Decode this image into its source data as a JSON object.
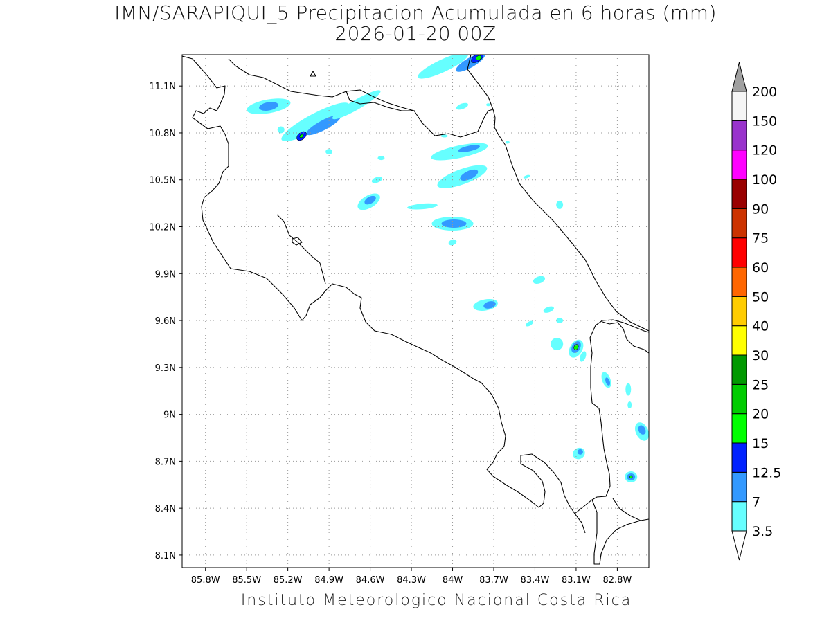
{
  "header": {
    "title_line1": "IMN/SARAPIQUI_5 Precipitacion Acumulada en 6 horas (mm)",
    "title_line2": "2026-01-20 00Z"
  },
  "footer": {
    "credit": "Instituto Meteorologico Nacional Costa Rica"
  },
  "map": {
    "lon_labels": [
      "85.8W",
      "85.5W",
      "85.2W",
      "84.9W",
      "84.6W",
      "84.3W",
      "84W",
      "83.7W",
      "83.4W",
      "83.1W",
      "82.8W"
    ],
    "lon_values": [
      -85.8,
      -85.5,
      -85.2,
      -84.9,
      -84.6,
      -84.3,
      -84.0,
      -83.7,
      -83.4,
      -83.1,
      -82.8
    ],
    "lat_labels": [
      "11.1N",
      "10.8N",
      "10.5N",
      "10.2N",
      "9.9N",
      "9.6N",
      "9.3N",
      "9N",
      "8.7N",
      "8.4N",
      "8.1N"
    ],
    "lat_values": [
      11.1,
      10.8,
      10.5,
      10.2,
      9.9,
      9.6,
      9.3,
      9.0,
      8.7,
      8.4,
      8.1
    ],
    "lon_range": [
      -85.97,
      -82.57
    ],
    "lat_range": [
      8.02,
      11.3
    ],
    "grid": "dotted"
  },
  "legend": {
    "levels": [
      "3.5",
      "7",
      "12.5",
      "15",
      "20",
      "25",
      "30",
      "40",
      "50",
      "60",
      "75",
      "90",
      "100",
      "120",
      "150",
      "200"
    ],
    "colors": [
      "#66ffff",
      "#3399ff",
      "#0022ff",
      "#00ff00",
      "#00cc00",
      "#009900",
      "#ffff00",
      "#ffcc00",
      "#ff6600",
      "#ff0000",
      "#cc3300",
      "#990000",
      "#ff00ff",
      "#9933cc",
      "#f5f5f5"
    ],
    "top_arrow_color": "#a0a0a0",
    "bottom_arrow_color": "#ffffff"
  },
  "precip_cells": [
    {
      "lon": -84.07,
      "lat": 11.23,
      "rx": 40,
      "ry": 9,
      "rot": -25,
      "level": 0
    },
    {
      "lon": -83.87,
      "lat": 11.25,
      "rx": 24,
      "ry": 7,
      "rot": -30,
      "level": 1
    },
    {
      "lon": -83.82,
      "lat": 11.28,
      "rx": 10,
      "ry": 5,
      "rot": -35,
      "level": 2
    },
    {
      "lon": -83.81,
      "lat": 11.28,
      "rx": 4,
      "ry": 3,
      "rot": -35,
      "level": 3
    },
    {
      "lon": -85.34,
      "lat": 10.97,
      "rx": 32,
      "ry": 10,
      "rot": -10,
      "level": 0
    },
    {
      "lon": -85.34,
      "lat": 10.97,
      "rx": 14,
      "ry": 6,
      "rot": -10,
      "level": 1
    },
    {
      "lon": -85.0,
      "lat": 10.87,
      "rx": 55,
      "ry": 12,
      "rot": -28,
      "level": 0
    },
    {
      "lon": -84.94,
      "lat": 10.85,
      "rx": 28,
      "ry": 7,
      "rot": -28,
      "level": 1
    },
    {
      "lon": -85.1,
      "lat": 10.78,
      "rx": 8,
      "ry": 5,
      "rot": -40,
      "level": 2
    },
    {
      "lon": -85.1,
      "lat": 10.78,
      "rx": 3,
      "ry": 2,
      "rot": -40,
      "level": 3
    },
    {
      "lon": -84.7,
      "lat": 10.98,
      "rx": 40,
      "ry": 7,
      "rot": -30,
      "level": 0
    },
    {
      "lon": -83.95,
      "lat": 10.68,
      "rx": 42,
      "ry": 9,
      "rot": -12,
      "level": 0
    },
    {
      "lon": -83.88,
      "lat": 10.7,
      "rx": 16,
      "ry": 4,
      "rot": -12,
      "level": 1
    },
    {
      "lon": -83.93,
      "lat": 10.52,
      "rx": 38,
      "ry": 11,
      "rot": -20,
      "level": 0
    },
    {
      "lon": -83.88,
      "lat": 10.53,
      "rx": 14,
      "ry": 6,
      "rot": -25,
      "level": 1
    },
    {
      "lon": -84.61,
      "lat": 10.36,
      "rx": 18,
      "ry": 9,
      "rot": -30,
      "level": 0
    },
    {
      "lon": -84.6,
      "lat": 10.37,
      "rx": 9,
      "ry": 5,
      "rot": -30,
      "level": 1
    },
    {
      "lon": -84.22,
      "lat": 10.33,
      "rx": 22,
      "ry": 4,
      "rot": -5,
      "level": 0
    },
    {
      "lon": -84.0,
      "lat": 10.22,
      "rx": 30,
      "ry": 10,
      "rot": 0,
      "level": 0
    },
    {
      "lon": -83.99,
      "lat": 10.22,
      "rx": 18,
      "ry": 6,
      "rot": 0,
      "level": 1
    },
    {
      "lon": -83.76,
      "lat": 9.7,
      "rx": 18,
      "ry": 8,
      "rot": -10,
      "level": 0
    },
    {
      "lon": -83.73,
      "lat": 9.7,
      "rx": 9,
      "ry": 5,
      "rot": -15,
      "level": 1
    },
    {
      "lon": -83.37,
      "lat": 9.86,
      "rx": 9,
      "ry": 5,
      "rot": -20,
      "level": 0
    },
    {
      "lon": -83.24,
      "lat": 9.45,
      "rx": 9,
      "ry": 9,
      "rot": -40,
      "level": 0
    },
    {
      "lon": -83.1,
      "lat": 9.42,
      "rx": 9,
      "ry": 14,
      "rot": 30,
      "level": 0
    },
    {
      "lon": -83.1,
      "lat": 9.43,
      "rx": 6,
      "ry": 9,
      "rot": 30,
      "level": 1
    },
    {
      "lon": -83.1,
      "lat": 9.43,
      "rx": 3,
      "ry": 4,
      "rot": 30,
      "level": 3
    },
    {
      "lon": -82.88,
      "lat": 9.22,
      "rx": 6,
      "ry": 12,
      "rot": -20,
      "level": 0
    },
    {
      "lon": -82.87,
      "lat": 9.21,
      "rx": 3,
      "ry": 6,
      "rot": -20,
      "level": 1
    },
    {
      "lon": -82.62,
      "lat": 8.89,
      "rx": 9,
      "ry": 14,
      "rot": -25,
      "level": 0
    },
    {
      "lon": -82.62,
      "lat": 8.9,
      "rx": 5,
      "ry": 7,
      "rot": -25,
      "level": 1
    },
    {
      "lon": -82.7,
      "lat": 8.6,
      "rx": 9,
      "ry": 8,
      "rot": 0,
      "level": 0
    },
    {
      "lon": -82.7,
      "lat": 8.6,
      "rx": 6,
      "ry": 5,
      "rot": 0,
      "level": 1
    },
    {
      "lon": -82.7,
      "lat": 8.6,
      "rx": 2,
      "ry": 2,
      "rot": 0,
      "level": 3
    },
    {
      "lon": -83.08,
      "lat": 8.75,
      "rx": 9,
      "ry": 8,
      "rot": -30,
      "level": 0
    },
    {
      "lon": -83.07,
      "lat": 8.76,
      "rx": 4,
      "ry": 4,
      "rot": -30,
      "level": 1
    },
    {
      "lon": -84.52,
      "lat": 10.64,
      "rx": 5,
      "ry": 3,
      "rot": 0,
      "level": 0
    },
    {
      "lon": -84.9,
      "lat": 10.68,
      "rx": 5,
      "ry": 4,
      "rot": 0,
      "level": 0
    },
    {
      "lon": -85.25,
      "lat": 10.82,
      "rx": 5,
      "ry": 5,
      "rot": 0,
      "level": 0
    },
    {
      "lon": -84.55,
      "lat": 10.5,
      "rx": 8,
      "ry": 4,
      "rot": -20,
      "level": 0
    },
    {
      "lon": -83.93,
      "lat": 10.97,
      "rx": 9,
      "ry": 4,
      "rot": -20,
      "level": 0
    },
    {
      "lon": -83.3,
      "lat": 9.67,
      "rx": 8,
      "ry": 4,
      "rot": -20,
      "level": 0
    },
    {
      "lon": -83.44,
      "lat": 9.58,
      "rx": 6,
      "ry": 3,
      "rot": -30,
      "level": 0
    },
    {
      "lon": -83.22,
      "lat": 9.6,
      "rx": 5,
      "ry": 4,
      "rot": 0,
      "level": 0
    },
    {
      "lon": -83.05,
      "lat": 9.37,
      "rx": 4,
      "ry": 8,
      "rot": 20,
      "level": 0
    },
    {
      "lon": -82.72,
      "lat": 9.16,
      "rx": 4,
      "ry": 9,
      "rot": 0,
      "level": 0
    },
    {
      "lon": -82.71,
      "lat": 9.06,
      "rx": 3,
      "ry": 5,
      "rot": 0,
      "level": 0
    },
    {
      "lon": -83.22,
      "lat": 10.34,
      "rx": 5,
      "ry": 6,
      "rot": 0,
      "level": 0
    },
    {
      "lon": -83.46,
      "lat": 10.52,
      "rx": 5,
      "ry": 2,
      "rot": -20,
      "level": 0
    },
    {
      "lon": -84.0,
      "lat": 10.1,
      "rx": 6,
      "ry": 4,
      "rot": -20,
      "level": 0
    },
    {
      "lon": -84.06,
      "lat": 10.78,
      "rx": 5,
      "ry": 2,
      "rot": 0,
      "level": 0
    },
    {
      "lon": -83.6,
      "lat": 10.74,
      "rx": 3,
      "ry": 2,
      "rot": 0,
      "level": 0
    },
    {
      "lon": -83.74,
      "lat": 10.98,
      "rx": 3,
      "ry": 2,
      "rot": 0,
      "level": 0
    }
  ]
}
